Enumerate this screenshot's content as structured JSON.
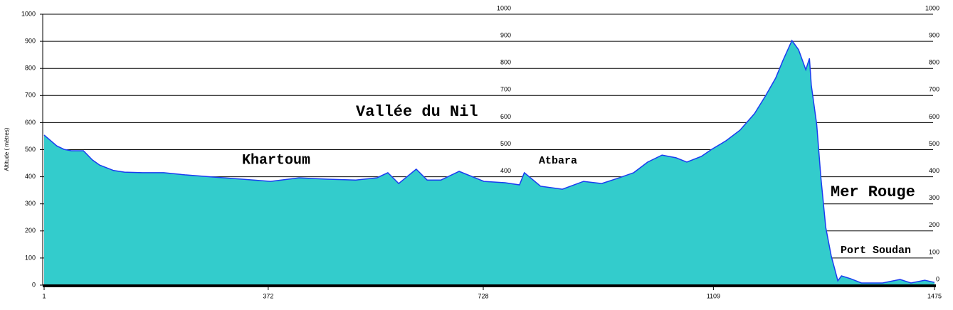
{
  "chart_data": {
    "type": "area",
    "y_label": "Altitude ( mètres)",
    "x": [
      1,
      22,
      34,
      46,
      66,
      81,
      93,
      116,
      134,
      164,
      199,
      234,
      281,
      329,
      376,
      423,
      470,
      517,
      552,
      570,
      588,
      617,
      635,
      658,
      688,
      729,
      764,
      788,
      796,
      823,
      859,
      894,
      924,
      953,
      977,
      1000,
      1024,
      1047,
      1065,
      1089,
      1106,
      1130,
      1153,
      1177,
      1195,
      1212,
      1224,
      1239,
      1250,
      1262,
      1268,
      1271,
      1280,
      1287,
      1295,
      1304,
      1315,
      1321,
      1336,
      1354,
      1389,
      1418,
      1436,
      1459,
      1475
    ],
    "series": [
      {
        "color": "#33cccc",
        "line_color": "#1a3cf0",
        "values": [
          554,
          514,
          501,
          496,
          496,
          462,
          443,
          423,
          417,
          415,
          415,
          407,
          399,
          391,
          383,
          396,
          391,
          388,
          396,
          415,
          375,
          428,
          388,
          388,
          420,
          383,
          378,
          370,
          415,
          365,
          354,
          383,
          375,
          396,
          415,
          454,
          480,
          470,
          454,
          475,
          501,
          533,
          572,
          633,
          698,
          764,
          829,
          903,
          869,
          795,
          837,
          738,
          593,
          396,
          213,
          108,
          16,
          34,
          24,
          8,
          8,
          21,
          8,
          18,
          10
        ]
      }
    ],
    "xlim": [
      1,
      1475
    ],
    "xticks": [
      1,
      372,
      728,
      1109,
      1475
    ],
    "ylim": [
      0,
      1000
    ],
    "yticks": [
      0,
      100,
      200,
      300,
      400,
      500,
      600,
      700,
      800,
      900,
      1000
    ],
    "grid": true,
    "annotations": [
      "Vallée du Nil",
      "Khartoum",
      "Atbara",
      "Mer Rouge",
      "Port Soudan"
    ]
  }
}
